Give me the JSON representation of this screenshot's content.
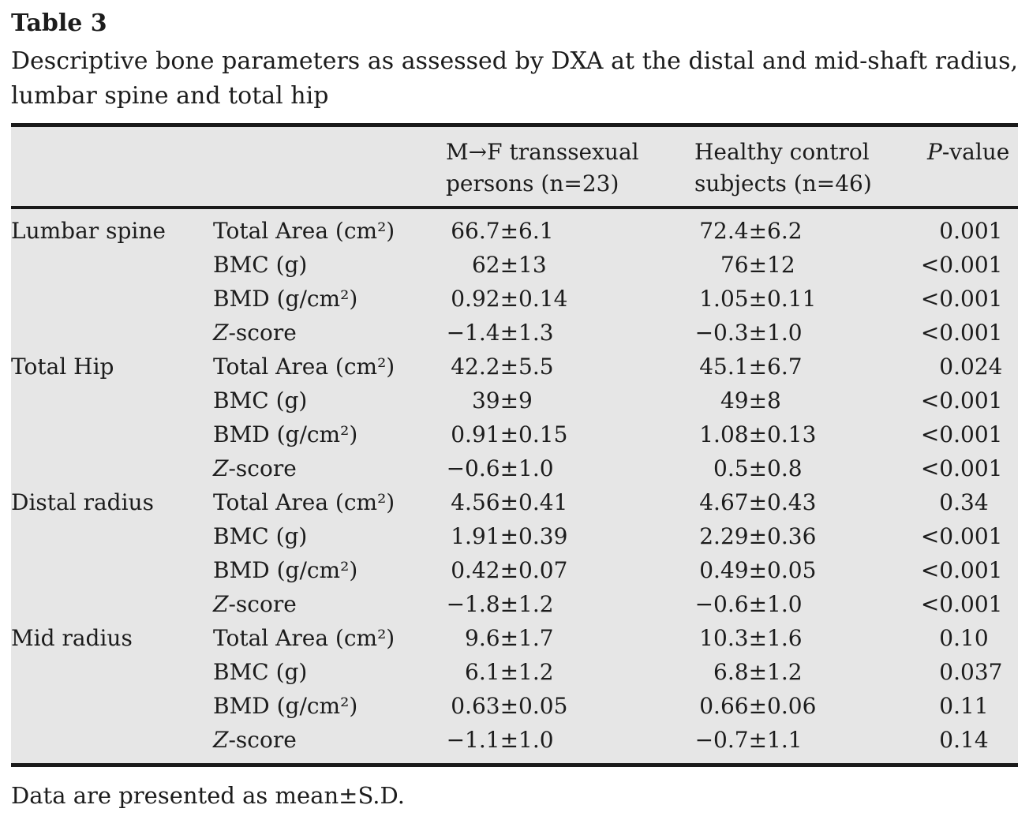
{
  "page": {
    "title": "Table 3",
    "caption_line1": "Descriptive bone parameters as assessed by DXA at the distal and mid-shaft radius,",
    "caption_line2": "lumbar spine and total hip",
    "footnote": "Data are presented as mean±S.D."
  },
  "table": {
    "columns": [
      "",
      "",
      "M→F transsexual persons (n=23)",
      "Healthy control subjects (n=46)",
      "P-value"
    ],
    "rows": [
      {
        "region": "Lumbar spine",
        "parameter": "Total Area (cm²)",
        "mtf_value": "66.7±6.1",
        "control_value": "72.4±6.2",
        "p_value": "0.001"
      },
      {
        "region": "",
        "parameter": "BMC (g)",
        "mtf_value": "62±13",
        "control_value": "76±12",
        "p_value": "<0.001"
      },
      {
        "region": "",
        "parameter": "BMD (g/cm²)",
        "mtf_value": "0.92±0.14",
        "control_value": "1.05±0.11",
        "p_value": "<0.001"
      },
      {
        "region": "",
        "parameter": "Z-score",
        "mtf_value": "−1.4±1.3",
        "control_value": "−0.3±1.0",
        "p_value": "<0.001"
      },
      {
        "region": "Total Hip",
        "parameter": "Total Area (cm²)",
        "mtf_value": "42.2±5.5",
        "control_value": "45.1±6.7",
        "p_value": "0.024"
      },
      {
        "region": "",
        "parameter": "BMC (g)",
        "mtf_value": "39±9",
        "control_value": "49±8",
        "p_value": "<0.001"
      },
      {
        "region": "",
        "parameter": "BMD (g/cm²)",
        "mtf_value": "0.91±0.15",
        "control_value": "1.08±0.13",
        "p_value": "<0.001"
      },
      {
        "region": "",
        "parameter": "Z-score",
        "mtf_value": "−0.6±1.0",
        "control_value": "0.5±0.8",
        "p_value": "<0.001"
      },
      {
        "region": "Distal radius",
        "parameter": "Total Area (cm²)",
        "mtf_value": "4.56±0.41",
        "control_value": "4.67±0.43",
        "p_value": "0.34"
      },
      {
        "region": "",
        "parameter": "BMC (g)",
        "mtf_value": "1.91±0.39",
        "control_value": "2.29±0.36",
        "p_value": "<0.001"
      },
      {
        "region": "",
        "parameter": "BMD (g/cm²)",
        "mtf_value": "0.42±0.07",
        "control_value": "0.49±0.05",
        "p_value": "<0.001"
      },
      {
        "region": "",
        "parameter": "Z-score",
        "mtf_value": "−1.8±1.2",
        "control_value": "−0.6±1.0",
        "p_value": "<0.001"
      },
      {
        "region": "Mid radius",
        "parameter": "Total Area (cm²)",
        "mtf_value": "9.6±1.7",
        "control_value": "10.3±1.6",
        "p_value": "0.10"
      },
      {
        "region": "",
        "parameter": "BMC (g)",
        "mtf_value": "6.1±1.2",
        "control_value": "6.8±1.2",
        "p_value": "0.037"
      },
      {
        "region": "",
        "parameter": "BMD (g/cm²)",
        "mtf_value": "0.63±0.05",
        "control_value": "0.66±0.06",
        "p_value": "0.11"
      },
      {
        "region": "",
        "parameter": "Z-score",
        "mtf_value": "−1.1±1.0",
        "control_value": "−0.7±1.1",
        "p_value": "0.14"
      }
    ]
  },
  "colors": {
    "table_bg": "#e6e6e6",
    "rule_color": "#1a1a1a",
    "text_color": "#1c1c1c"
  }
}
